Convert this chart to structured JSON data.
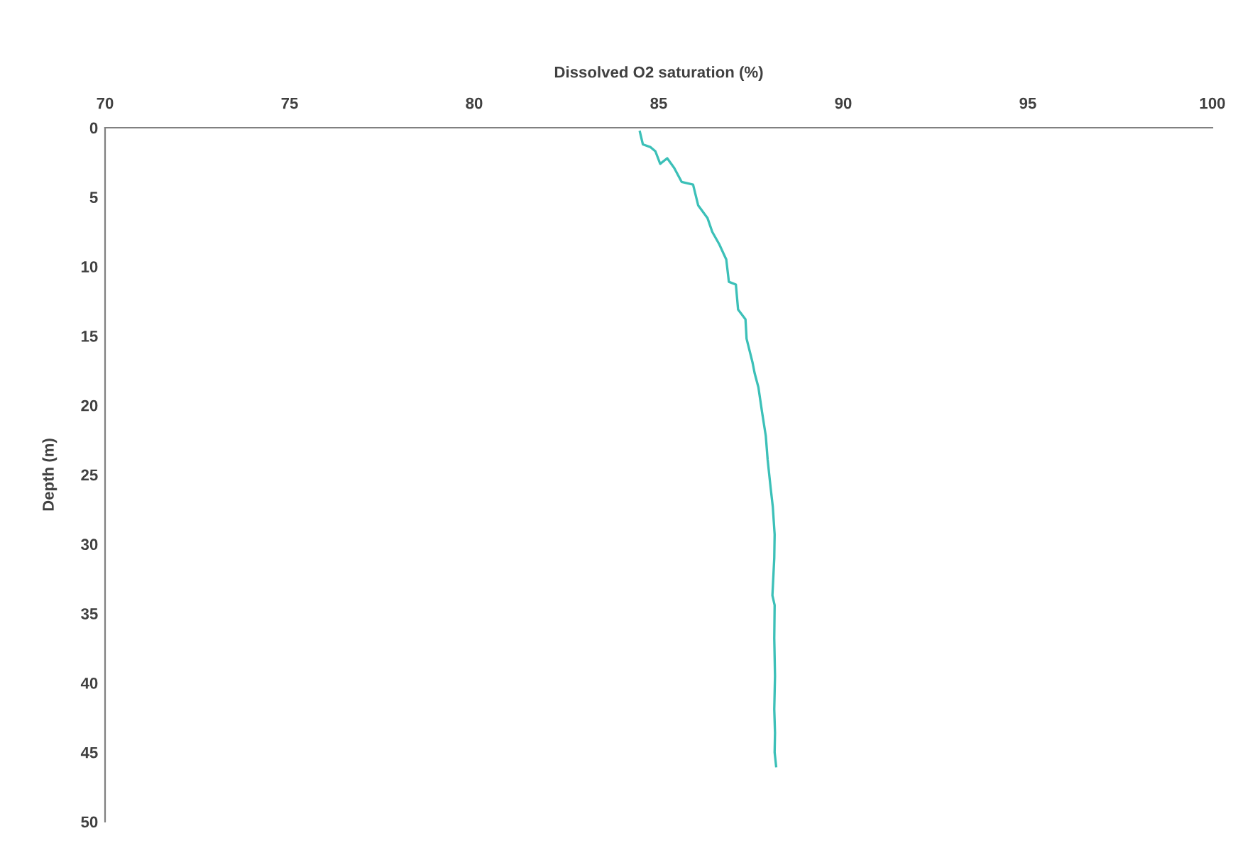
{
  "chart_data": {
    "type": "line",
    "xlabel": "Dissolved O2 saturation (%)",
    "ylabel": "Depth (m)",
    "xlim": [
      70,
      100
    ],
    "xticks": [
      70,
      75,
      80,
      85,
      90,
      95,
      100
    ],
    "ylim": [
      50,
      0
    ],
    "yticks": [
      0,
      5,
      10,
      15,
      20,
      25,
      30,
      35,
      40,
      45,
      50
    ],
    "grid": false,
    "marker": "none",
    "line_style": "solid",
    "series": [
      {
        "color": "#3cc0b8",
        "x": [
          84.49,
          84.57,
          84.78,
          84.91,
          85.04,
          85.23,
          85.42,
          85.62,
          85.93,
          86.07,
          86.32,
          86.45,
          86.64,
          86.83,
          86.9,
          87.09,
          87.15,
          87.35,
          87.38,
          87.54,
          87.6,
          87.7,
          87.8,
          87.9,
          87.95,
          88.03,
          88.09,
          88.14,
          88.13,
          88.08,
          88.14,
          88.13,
          88.15,
          88.13,
          88.15,
          88.14,
          88.18
        ],
        "values": [
          0.3,
          1.2,
          1.4,
          1.7,
          2.6,
          2.2,
          2.9,
          3.9,
          4.1,
          5.6,
          6.5,
          7.5,
          8.4,
          9.5,
          11.1,
          11.3,
          13.1,
          13.8,
          15.2,
          16.9,
          17.7,
          18.7,
          20.5,
          22.2,
          23.9,
          25.9,
          27.3,
          29.3,
          31.0,
          33.7,
          34.4,
          36.8,
          39.5,
          41.9,
          43.6,
          45.0,
          46.0
        ]
      }
    ]
  }
}
